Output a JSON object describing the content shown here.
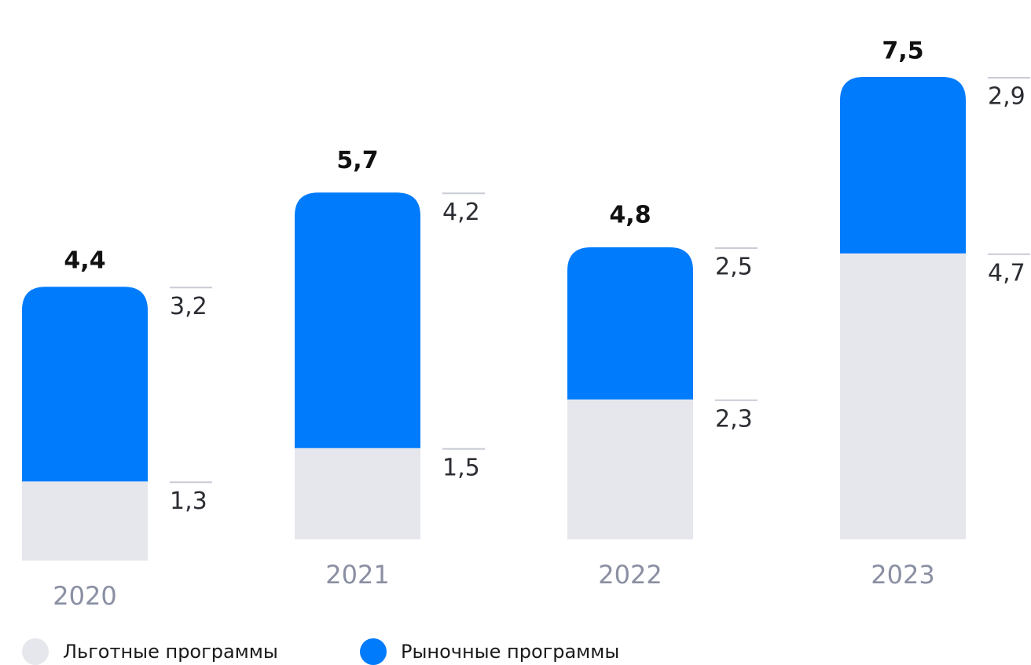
{
  "chart_data": {
    "type": "stacked-bar",
    "categories": [
      "2020",
      "2021",
      "2022",
      "2023"
    ],
    "series": [
      {
        "name": "Льготные программы",
        "color": "#e6e7ec",
        "values": [
          1.3,
          1.5,
          2.3,
          4.7
        ],
        "value_labels": [
          "1,3",
          "1,5",
          "2,3",
          "4,7"
        ]
      },
      {
        "name": "Рыночные программы",
        "color": "#007bfb",
        "values": [
          3.2,
          4.2,
          2.5,
          2.9
        ],
        "value_labels": [
          "3,2",
          "4,2",
          "2,5",
          "2,9"
        ]
      }
    ],
    "totals": [
      4.4,
      5.7,
      4.8,
      7.5
    ],
    "total_labels": [
      "4,4",
      "5,7",
      "4,8",
      "7,5"
    ]
  }
}
